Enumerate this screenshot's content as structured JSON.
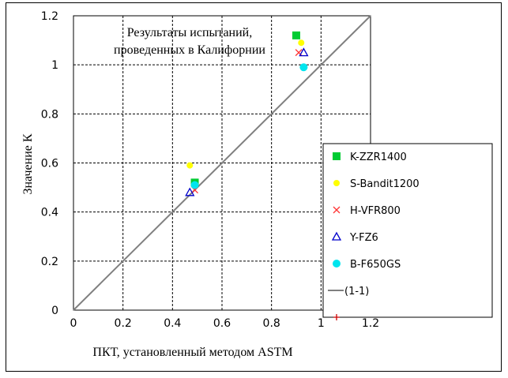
{
  "chart_data": {
    "type": "scatter",
    "title_lines": [
      "Результаты испытаний,",
      "проведенных в Калифорнии"
    ],
    "xlabel": "ПКТ, установленный методом ASTM",
    "ylabel": "Значение К",
    "xlim": [
      0,
      1.2
    ],
    "ylim": [
      0,
      1.2
    ],
    "x_ticks": [
      "0",
      "0.2",
      "0.4",
      "0.6",
      "0.8",
      "1",
      "1.2"
    ],
    "y_ticks": [
      "0",
      "0.2",
      "0.4",
      "0.6",
      "0.8",
      "1",
      "1.2"
    ],
    "grid": true,
    "legend_position": "right",
    "series": [
      {
        "name": "K-ZZR1400",
        "marker": "square",
        "color": "#00cc33",
        "points": [
          {
            "x": 0.49,
            "y": 0.52
          },
          {
            "x": 0.9,
            "y": 1.12
          }
        ]
      },
      {
        "name": "S-Bandit1200",
        "marker": "circle-small",
        "color": "#ffff00",
        "points": [
          {
            "x": 0.47,
            "y": 0.59
          },
          {
            "x": 0.92,
            "y": 1.09
          }
        ]
      },
      {
        "name": "H-VFR800",
        "marker": "x",
        "color": "#ff3333",
        "points": [
          {
            "x": 0.49,
            "y": 0.49
          },
          {
            "x": 0.91,
            "y": 1.05
          }
        ]
      },
      {
        "name": "Y-FZ6",
        "marker": "triangle",
        "color": "#0000cc",
        "points": [
          {
            "x": 0.47,
            "y": 0.48
          },
          {
            "x": 0.93,
            "y": 1.05
          }
        ]
      },
      {
        "name": "B-F650GS",
        "marker": "circle",
        "color": "#00e5ee",
        "points": [
          {
            "x": 0.49,
            "y": 0.51
          },
          {
            "x": 0.93,
            "y": 0.99
          }
        ]
      },
      {
        "name": "(1-1)",
        "marker": "line",
        "color": "#808080",
        "points": [
          {
            "x": 0,
            "y": 0
          },
          {
            "x": 1.2,
            "y": 1.2
          }
        ]
      },
      {
        "name": "",
        "marker": "plus",
        "color": "#cc0000",
        "points": []
      }
    ]
  }
}
